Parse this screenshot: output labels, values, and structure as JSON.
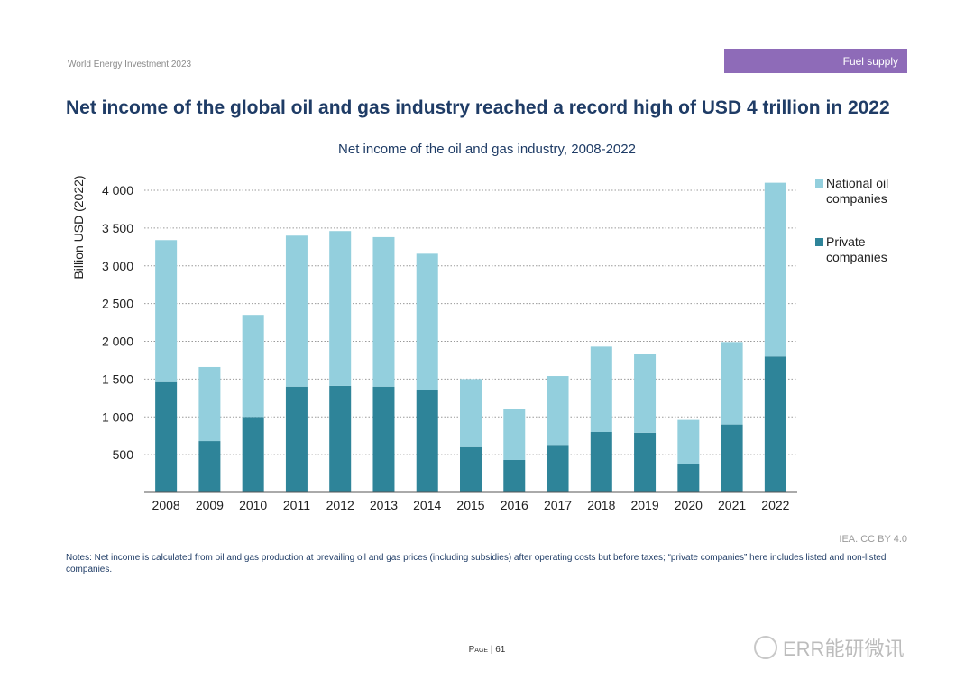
{
  "header": {
    "report_name": "World Energy Investment 2023",
    "section_tag": "Fuel supply"
  },
  "page_title": "Net income of the global oil and gas industry reached a record high of USD 4 trillion in 2022",
  "chart_data": {
    "type": "bar",
    "stacked": true,
    "title": "Net income of the oil and gas industry, 2008-2022",
    "xlabel": "",
    "ylabel": "Billion USD (2022)",
    "ylim": [
      0,
      4000
    ],
    "yticks": [
      500,
      1000,
      1500,
      2000,
      2500,
      3000,
      3500,
      4000
    ],
    "ytick_labels": [
      "500",
      "1 000",
      "1 500",
      "2 000",
      "2 500",
      "3 000",
      "3 500",
      "4 000"
    ],
    "grid": true,
    "legend_position": "right",
    "categories": [
      "2008",
      "2009",
      "2010",
      "2011",
      "2012",
      "2013",
      "2014",
      "2015",
      "2016",
      "2017",
      "2018",
      "2019",
      "2020",
      "2021",
      "2022"
    ],
    "series": [
      {
        "name": "Private companies",
        "color": "#2e8499",
        "values": [
          1460,
          680,
          1000,
          1400,
          1410,
          1400,
          1350,
          600,
          430,
          630,
          800,
          790,
          380,
          900,
          1800
        ]
      },
      {
        "name": "National oil companies",
        "color": "#93cfdd",
        "values": [
          1880,
          980,
          1350,
          2000,
          2050,
          1980,
          1810,
          900,
          670,
          910,
          1130,
          1040,
          580,
          1090,
          2300
        ]
      }
    ],
    "legend_labels": [
      {
        "line1": "National oil",
        "line2": "companies",
        "color": "#93cfdd"
      },
      {
        "line1": "Private",
        "line2": "companies",
        "color": "#2e8499"
      }
    ]
  },
  "source": "IEA. CC BY 4.0",
  "notes": "Notes: Net income is calculated from oil and gas production at prevailing oil and gas prices (including subsidies) after operating costs but before taxes; “private companies” here includes listed and non-listed companies.",
  "footer": {
    "page_prefix": "Page",
    "page_sep": " | ",
    "page_number": "61"
  },
  "watermark": "ERR能研微讯"
}
